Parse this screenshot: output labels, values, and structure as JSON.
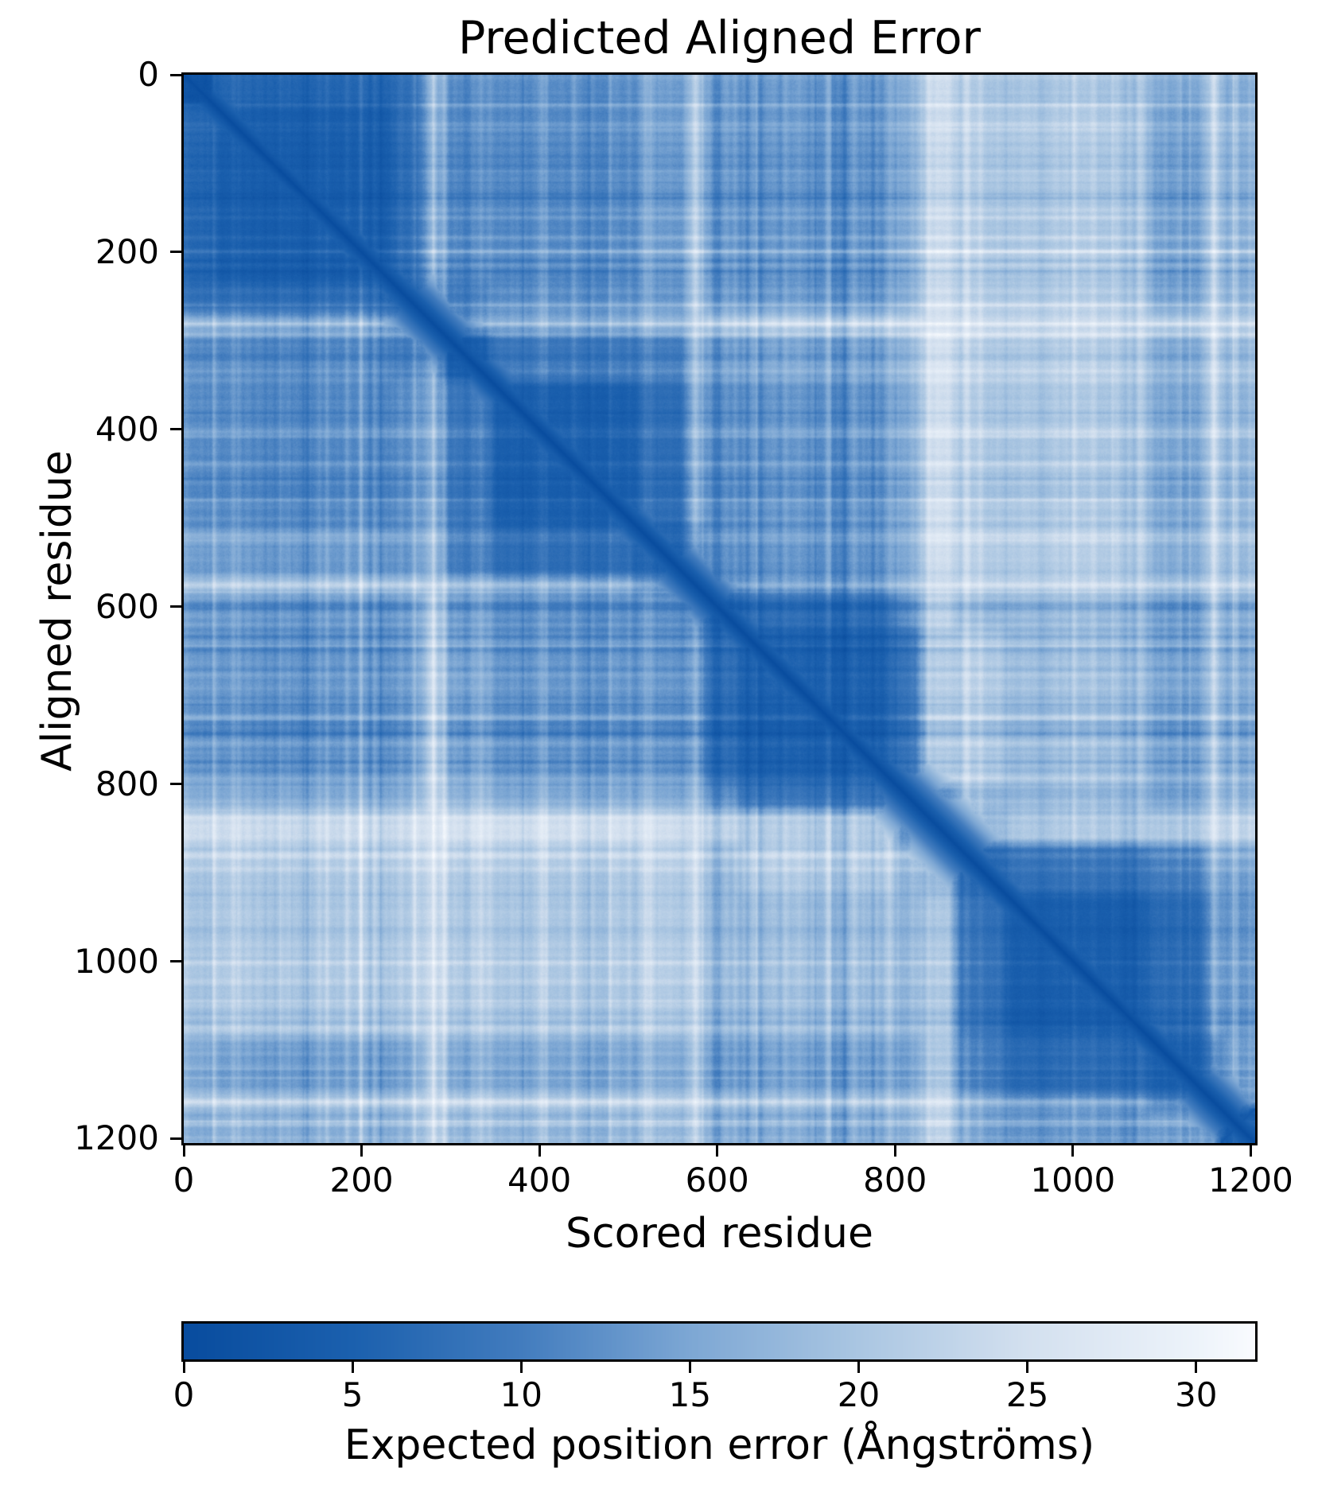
{
  "chart_data": {
    "type": "heatmap",
    "title": "Predicted Aligned Error",
    "xlabel": "Scored residue",
    "ylabel": "Aligned residue",
    "colorbar_label": "Expected position error (Ångströms)",
    "n_residues": 1205,
    "x_range": [
      0,
      1205
    ],
    "y_range": [
      0,
      1205
    ],
    "value_range": [
      0,
      31.75
    ],
    "x_ticks": [
      0,
      200,
      400,
      600,
      800,
      1000,
      1200
    ],
    "y_ticks": [
      0,
      200,
      400,
      600,
      800,
      1000,
      1200
    ],
    "colorbar_ticks": [
      0,
      5,
      10,
      15,
      20,
      25,
      30
    ],
    "grid": false,
    "legend": "none",
    "colormap": {
      "name": "Blues_r",
      "stops": [
        [
          0,
          "#084c9e"
        ],
        [
          5,
          "#1b60ae"
        ],
        [
          10,
          "#427cbe"
        ],
        [
          15,
          "#7da7d4"
        ],
        [
          20,
          "#aac6e2"
        ],
        [
          25,
          "#d3e0ef"
        ],
        [
          30,
          "#edf3fa"
        ],
        [
          31.75,
          "#f9fbfe"
        ]
      ]
    },
    "diagonal_value": 0,
    "segments": [
      [
        0,
        35
      ],
      [
        35,
        235
      ],
      [
        235,
        270
      ],
      [
        270,
        290
      ],
      [
        290,
        345
      ],
      [
        345,
        510
      ],
      [
        510,
        565
      ],
      [
        565,
        585
      ],
      [
        585,
        625
      ],
      [
        625,
        800
      ],
      [
        800,
        830
      ],
      [
        830,
        868
      ],
      [
        868,
        925
      ],
      [
        925,
        1085
      ],
      [
        1085,
        1152
      ],
      [
        1152,
        1166
      ],
      [
        1166,
        1205
      ]
    ],
    "segment_pae_matrix": [
      [
        2,
        6,
        8,
        18,
        12,
        12,
        14,
        20,
        14,
        13,
        16,
        24,
        20,
        20,
        16,
        24,
        16
      ],
      [
        6,
        4,
        7,
        16,
        11,
        11,
        13,
        20,
        13,
        12,
        15,
        23,
        20,
        20,
        14,
        23,
        16
      ],
      [
        8,
        7,
        5,
        14,
        10,
        12,
        13,
        20,
        14,
        13,
        16,
        24,
        21,
        21,
        15,
        24,
        17
      ],
      [
        18,
        16,
        14,
        8,
        14,
        16,
        18,
        22,
        22,
        22,
        23,
        26,
        24,
        24,
        22,
        26,
        22
      ],
      [
        12,
        11,
        10,
        14,
        4,
        9,
        10,
        18,
        14,
        14,
        17,
        25,
        21,
        21,
        16,
        25,
        18
      ],
      [
        12,
        11,
        12,
        16,
        9,
        4.5,
        7,
        16,
        12,
        12,
        15,
        24,
        20,
        20,
        15,
        24,
        17
      ],
      [
        14,
        13,
        13,
        18,
        10,
        7,
        5,
        12,
        12,
        12,
        15,
        24,
        21,
        21,
        16,
        24,
        18
      ],
      [
        20,
        20,
        20,
        22,
        18,
        16,
        12,
        9,
        13,
        14,
        18,
        24,
        23,
        23,
        20,
        26,
        21
      ],
      [
        14,
        13,
        14,
        22,
        14,
        12,
        12,
        13,
        5,
        7,
        12,
        22,
        18,
        18,
        14,
        23,
        16
      ],
      [
        13,
        12,
        13,
        22,
        14,
        12,
        12,
        14,
        7,
        4.5,
        8,
        20,
        20,
        18,
        14,
        22,
        15
      ],
      [
        16,
        15,
        16,
        23,
        17,
        15,
        15,
        18,
        12,
        8,
        5,
        12,
        17,
        17,
        14,
        22,
        16
      ],
      [
        24,
        23,
        24,
        26,
        25,
        24,
        24,
        24,
        22,
        20,
        12,
        12,
        18,
        20,
        20,
        26,
        22
      ],
      [
        20,
        20,
        21,
        24,
        21,
        20,
        21,
        23,
        18,
        20,
        17,
        18,
        6,
        8,
        10,
        18,
        14
      ],
      [
        20,
        20,
        21,
        24,
        21,
        20,
        21,
        23,
        18,
        18,
        17,
        20,
        8,
        4.5,
        7,
        16,
        13
      ],
      [
        16,
        14,
        15,
        22,
        16,
        15,
        16,
        20,
        14,
        14,
        14,
        20,
        10,
        7,
        5,
        12,
        14
      ],
      [
        24,
        23,
        24,
        26,
        25,
        24,
        24,
        26,
        23,
        22,
        22,
        26,
        18,
        16,
        12,
        10,
        12
      ],
      [
        16,
        16,
        17,
        22,
        18,
        17,
        18,
        21,
        16,
        15,
        16,
        22,
        14,
        13,
        14,
        12,
        4
      ]
    ],
    "cross_pattern_segment": 16,
    "texture": {
      "seed": 7,
      "streak_count": 110,
      "amplitude": 2.4
    }
  }
}
